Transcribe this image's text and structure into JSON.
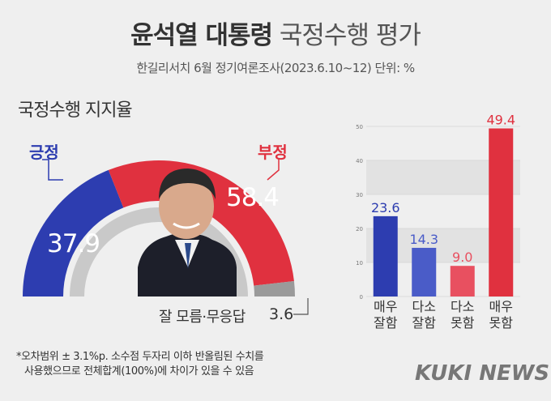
{
  "title": {
    "bold": "윤석열 대통령",
    "light": "국정수행 평가"
  },
  "subtitle": "한길리서치 6월 정기여론조사(2023.6.10~12) 단위: %",
  "section_title": "국정수행 지지율",
  "footnote": [
    "*오차범위 ± 3.1%p. 소수점 두자리 이하 반올림된 수치를",
    "사용했으므로 전체합계(100%)에 차이가 있을 수 있음"
  ],
  "logo": "KUKI NEWS",
  "colors": {
    "positive": "#2d3db0",
    "negative": "#e0313f",
    "dontknow": "#9a9a9a"
  },
  "chart_data": [
    {
      "type": "pie",
      "style": "semicircle",
      "slices": [
        {
          "label": "긍정",
          "value": 37.9,
          "value_label": "37.9",
          "color": "#2d3db0"
        },
        {
          "label": "부정",
          "value": 58.4,
          "value_label": "58.4",
          "color": "#e0313f"
        },
        {
          "label": "잘 모름·무응답",
          "value": 3.6,
          "value_label": "3.6",
          "color": "#9a9a9a"
        }
      ]
    },
    {
      "type": "bar",
      "categories": [
        [
          "매우",
          "잘함"
        ],
        [
          "다소",
          "잘함"
        ],
        [
          "다소",
          "못함"
        ],
        [
          "매우",
          "못함"
        ]
      ],
      "values": [
        23.6,
        14.3,
        9.0,
        49.4
      ],
      "value_labels": [
        "23.6",
        "14.3",
        "9.0",
        "49.4"
      ],
      "colors": [
        "#2d3db0",
        "#4a5cc8",
        "#e85060",
        "#e0313f"
      ],
      "yticks": [
        "0",
        "10",
        "20",
        "30",
        "40",
        "50"
      ],
      "ylim": [
        0,
        50
      ],
      "grid": true
    }
  ]
}
